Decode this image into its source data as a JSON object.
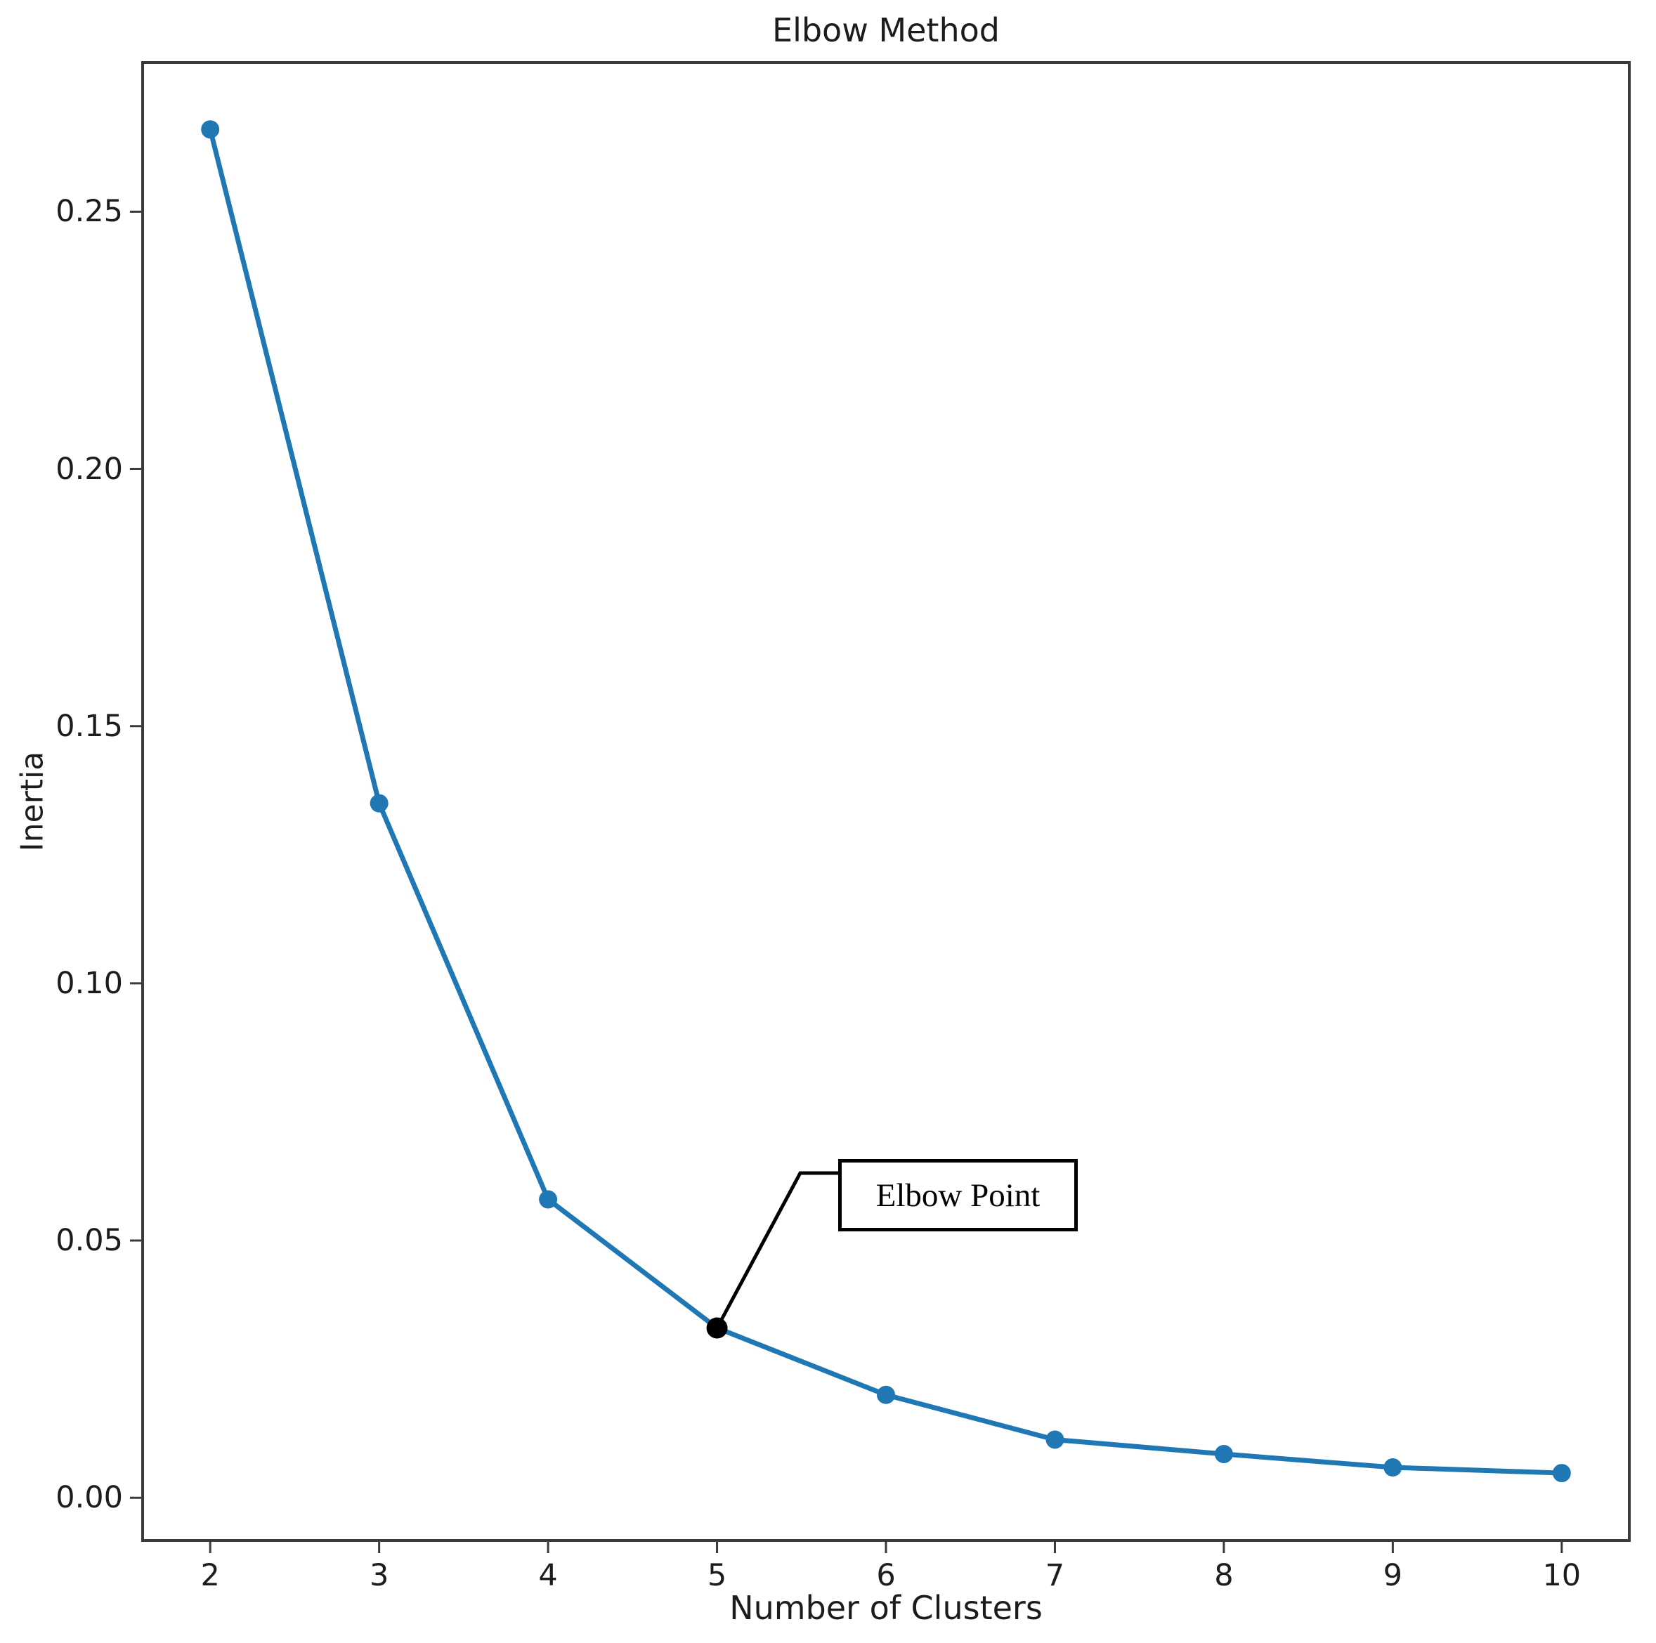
{
  "colors": {
    "line": "#1f77b4",
    "elbow_point": "#000000",
    "spine": "#3a3a3a",
    "text": "#1c1c1c",
    "background": "#ffffff"
  },
  "chart_data": {
    "type": "line",
    "title": "Elbow Method",
    "xlabel": "Number of Clusters",
    "ylabel": "Inertia",
    "x": [
      2,
      3,
      4,
      5,
      6,
      7,
      8,
      9,
      10
    ],
    "y": [
      0.266,
      0.135,
      0.058,
      0.033,
      0.02,
      0.0113,
      0.0085,
      0.0059,
      0.0048
    ],
    "series_name": "Inertia",
    "elbow_index": 3,
    "xticks": [
      "2",
      "3",
      "4",
      "5",
      "6",
      "7",
      "8",
      "9",
      "10"
    ],
    "yticks": [
      "0.00",
      "0.05",
      "0.10",
      "0.15",
      "0.20",
      "0.25"
    ],
    "ytick_values": [
      0.0,
      0.05,
      0.1,
      0.15,
      0.2,
      0.25
    ],
    "xlim": [
      1.6,
      10.4
    ],
    "ylim": [
      -0.0083,
      0.279
    ],
    "grid": false,
    "legend_position": "none",
    "marker": "circle",
    "annotations": [
      {
        "text": "Elbow Point",
        "x": 5,
        "y": 0.033
      }
    ]
  }
}
